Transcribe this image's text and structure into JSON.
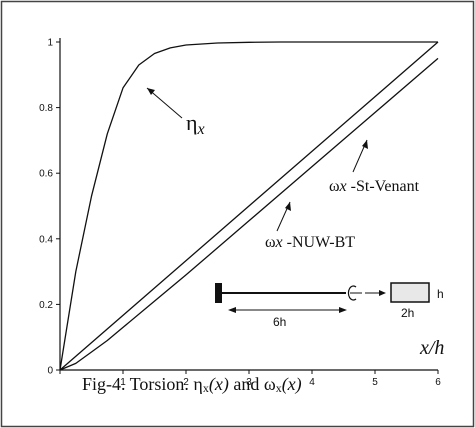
{
  "chart_data": {
    "type": "line",
    "title": "",
    "xlabel": "x/h",
    "ylabel": "",
    "xlim": [
      0,
      6
    ],
    "ylim": [
      0,
      1
    ],
    "x_ticks": [
      0,
      1,
      2,
      3,
      4,
      5,
      6
    ],
    "y_ticks": [
      0,
      0.2,
      0.4,
      0.6,
      0.8,
      1
    ],
    "x_tick_labels": [
      "",
      "1",
      "2",
      "3",
      "4",
      "5",
      "6"
    ],
    "y_tick_labels": [
      "0",
      "0.2",
      "0.4",
      "0.6",
      "0.8",
      "1"
    ],
    "grid": false,
    "series": [
      {
        "name": "ηx",
        "x": [
          0,
          0.25,
          0.5,
          0.75,
          1.0,
          1.25,
          1.5,
          1.75,
          2.0,
          2.5,
          3.0,
          3.5,
          4.0,
          5.0,
          6.0
        ],
        "y": [
          0,
          0.3,
          0.53,
          0.72,
          0.86,
          0.93,
          0.965,
          0.982,
          0.991,
          0.997,
          0.999,
          1.0,
          1.0,
          1.0,
          1.0
        ]
      },
      {
        "name": "ωx -St-Venant",
        "x": [
          0,
          6
        ],
        "y": [
          0,
          1.0
        ]
      },
      {
        "name": "ωx -NUW-BT",
        "x": [
          0,
          0.25,
          0.5,
          0.75,
          1.0,
          1.5,
          2.0,
          3.0,
          4.0,
          5.0,
          6.0
        ],
        "y": [
          0,
          0.02,
          0.055,
          0.09,
          0.13,
          0.21,
          0.29,
          0.455,
          0.62,
          0.785,
          0.95
        ]
      }
    ],
    "annotations": [
      {
        "text_main": "η",
        "text_sub": "x"
      },
      {
        "text_main": "ω",
        "text_sub": "x",
        "text_rest": " -St-Venant"
      },
      {
        "text_main": "ω",
        "text_sub": "x",
        "text_rest": " -NUW-BT"
      }
    ],
    "inset": {
      "beam_length_label": "6h",
      "section_width_label": "2h",
      "section_height_label": "h"
    }
  },
  "caption": {
    "prefix": "Fig-4. Torsion. ",
    "eta": "η",
    "eta_sub": "x",
    "eta_arg": "(x)",
    "conj": " and ",
    "omega": "ω",
    "omega_sub": "x",
    "omega_arg": "(x)"
  }
}
